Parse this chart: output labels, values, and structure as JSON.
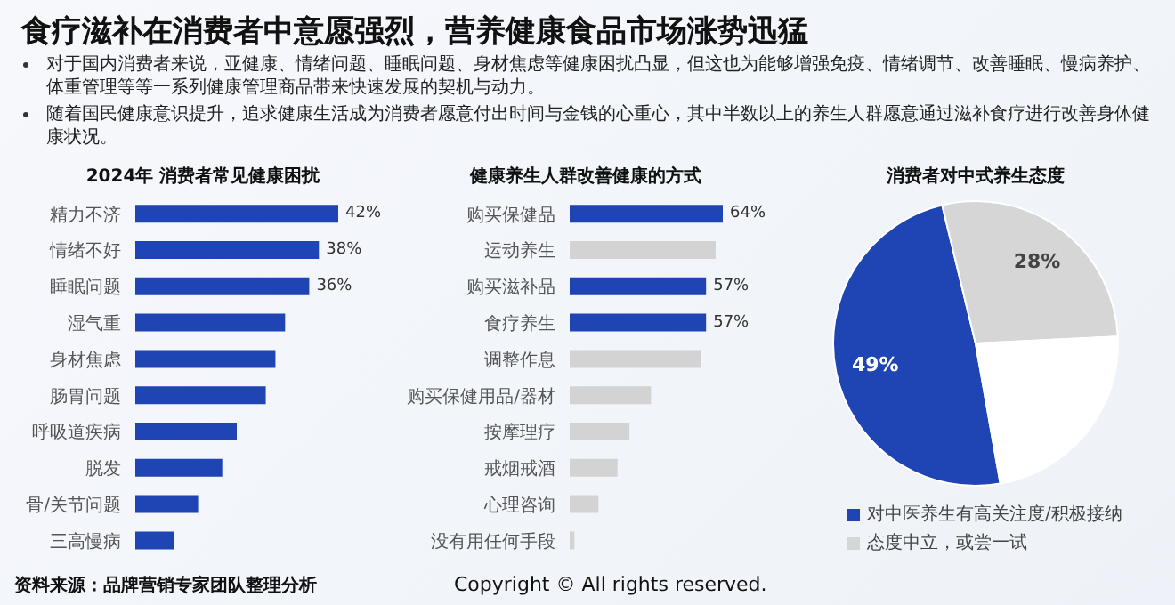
{
  "chart_data": [
    {
      "type": "other",
      "title": "食疗滋补在消费者中意愿强烈，营养健康食品市场涨势迅猛",
      "annotations": [
        "对于国内消费者来说，亚健康、情绪问题、睡眠问题、身材焦虑等健康困扰凸显，但这也为能够增强免疫、情绪调节、改善睡眠、慢病养护、体重管理等等一系列健康管理商品带来快速发展的契机与动力。",
        "随着国民健康意识提升，追求健康生活成为消费者愿意付出时间与金钱的心重心，其中半数以上的养生人群愿意通过滋补食疗进行改善身体健康状况。",
        "资料来源：品牌营销专家团队整理分析",
        "Copyright © All rights reserved."
      ]
    },
    {
      "type": "bar",
      "orientation": "horizontal",
      "title": "2024年 消费者常见健康困扰",
      "categories": [
        "精力不济",
        "情绪不好",
        "睡眠问题",
        "湿气重",
        "身材焦虑",
        "肠胃问题",
        "呼吸道疾病",
        "脱发",
        "骨/关节问题",
        "三高慢病"
      ],
      "values": [
        42,
        38,
        36,
        31,
        29,
        27,
        21,
        18,
        13,
        8
      ],
      "value_labels": [
        "42%",
        "38%",
        "36%",
        null,
        null,
        null,
        null,
        null,
        null,
        null
      ],
      "color": "#1f45b5"
    },
    {
      "type": "bar",
      "orientation": "horizontal",
      "title": "健康养生人群改善健康的方式",
      "categories": [
        "购买保健品",
        "运动养生",
        "购买滋补品",
        "食疗养生",
        "调整作息",
        "购买保健用品/器材",
        "按摩理疗",
        "戒烟戒酒",
        "心理咨询",
        "没有用任何手段"
      ],
      "values": [
        64,
        61,
        57,
        57,
        55,
        34,
        25,
        20,
        12,
        2
      ],
      "value_labels": [
        "64%",
        null,
        "57%",
        "57%",
        null,
        null,
        null,
        null,
        null,
        null
      ],
      "colors": [
        "#1f45b5",
        "#d3d3d3",
        "#1f45b5",
        "#1f45b5",
        "#d3d3d3",
        "#d3d3d3",
        "#d3d3d3",
        "#d3d3d3",
        "#d3d3d3",
        "#d3d3d3"
      ]
    },
    {
      "type": "pie",
      "title": "消费者对中式养生态度",
      "categories": [
        "对中医养生有高关注度/积极接纳",
        "态度中立，或尝一试",
        null
      ],
      "values": [
        49,
        28,
        23
      ],
      "value_labels": [
        "49%",
        "28%",
        null
      ],
      "colors": [
        "#1f45b5",
        "#d6d6d6",
        "#ffffff"
      ],
      "legend": "bottom"
    }
  ]
}
